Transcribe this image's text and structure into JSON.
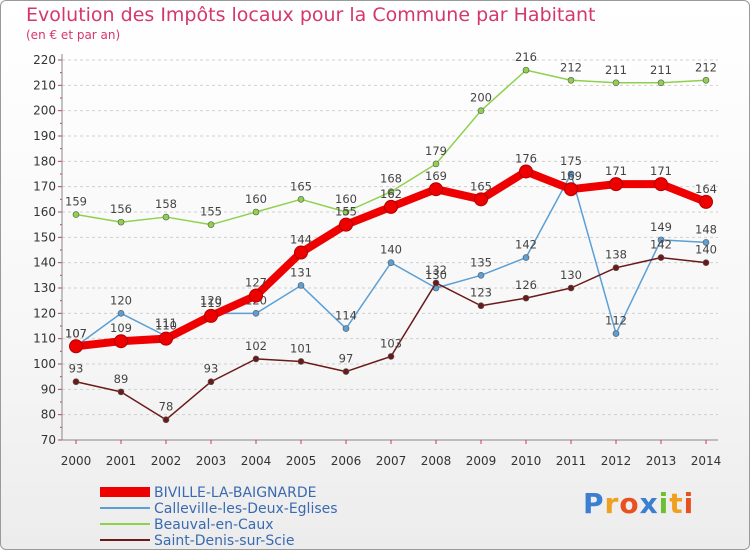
{
  "chart_data": {
    "type": "line",
    "title": "Evolution des Impôts locaux pour la Commune par Habitant",
    "subtitle": "(en € et par an)",
    "xlabel": "",
    "ylabel": "",
    "ylim": [
      70,
      220
    ],
    "yticks": [
      70,
      80,
      90,
      100,
      110,
      120,
      130,
      140,
      150,
      160,
      170,
      180,
      190,
      200,
      210,
      220
    ],
    "categories": [
      "2000",
      "2001",
      "2002",
      "2003",
      "2004",
      "2005",
      "2006",
      "2007",
      "2008",
      "2009",
      "2010",
      "2011",
      "2012",
      "2013",
      "2014"
    ],
    "grid": "horizontal-dashed",
    "legend_position": "bottom-left",
    "series": [
      {
        "name": "Beauval-en-Caux",
        "color": "#8fd14f",
        "width": 1.5,
        "values": [
          159,
          156,
          158,
          155,
          160,
          165,
          160,
          168,
          179,
          200,
          216,
          212,
          211,
          211,
          212
        ]
      },
      {
        "name": "Calleville-les-Deux-Eglises",
        "color": "#5b9fd4",
        "width": 1.5,
        "values": [
          107,
          120,
          111,
          120,
          120,
          131,
          114,
          140,
          130,
          135,
          142,
          175,
          112,
          149,
          148
        ]
      },
      {
        "name": "Saint-Denis-sur-Scie",
        "color": "#6b1a1a",
        "width": 1.5,
        "values": [
          93,
          89,
          78,
          93,
          102,
          101,
          97,
          103,
          132,
          123,
          126,
          130,
          138,
          142,
          140
        ]
      },
      {
        "name": "BIVILLE-LA-BAIGNARDE",
        "color": "#ee0000",
        "width": 8,
        "values": [
          107,
          109,
          110,
          119,
          127,
          144,
          155,
          162,
          169,
          165,
          176,
          169,
          171,
          171,
          164
        ]
      }
    ],
    "legend_order": [
      "BIVILLE-LA-BAIGNARDE",
      "Calleville-les-Deux-Eglises",
      "Beauval-en-Caux",
      "Saint-Denis-sur-Scie"
    ]
  },
  "logo": {
    "text": "Proxiti",
    "letters": [
      {
        "ch": "P",
        "color": "#3b7fd0"
      },
      {
        "ch": "r",
        "color": "#f0a020"
      },
      {
        "ch": "o",
        "color": "#e85020"
      },
      {
        "ch": "x",
        "color": "#3b7fd0"
      },
      {
        "ch": "i",
        "color": "#6cbf30"
      },
      {
        "ch": "t",
        "color": "#f0a020"
      },
      {
        "ch": "i",
        "color": "#e85020"
      }
    ]
  }
}
